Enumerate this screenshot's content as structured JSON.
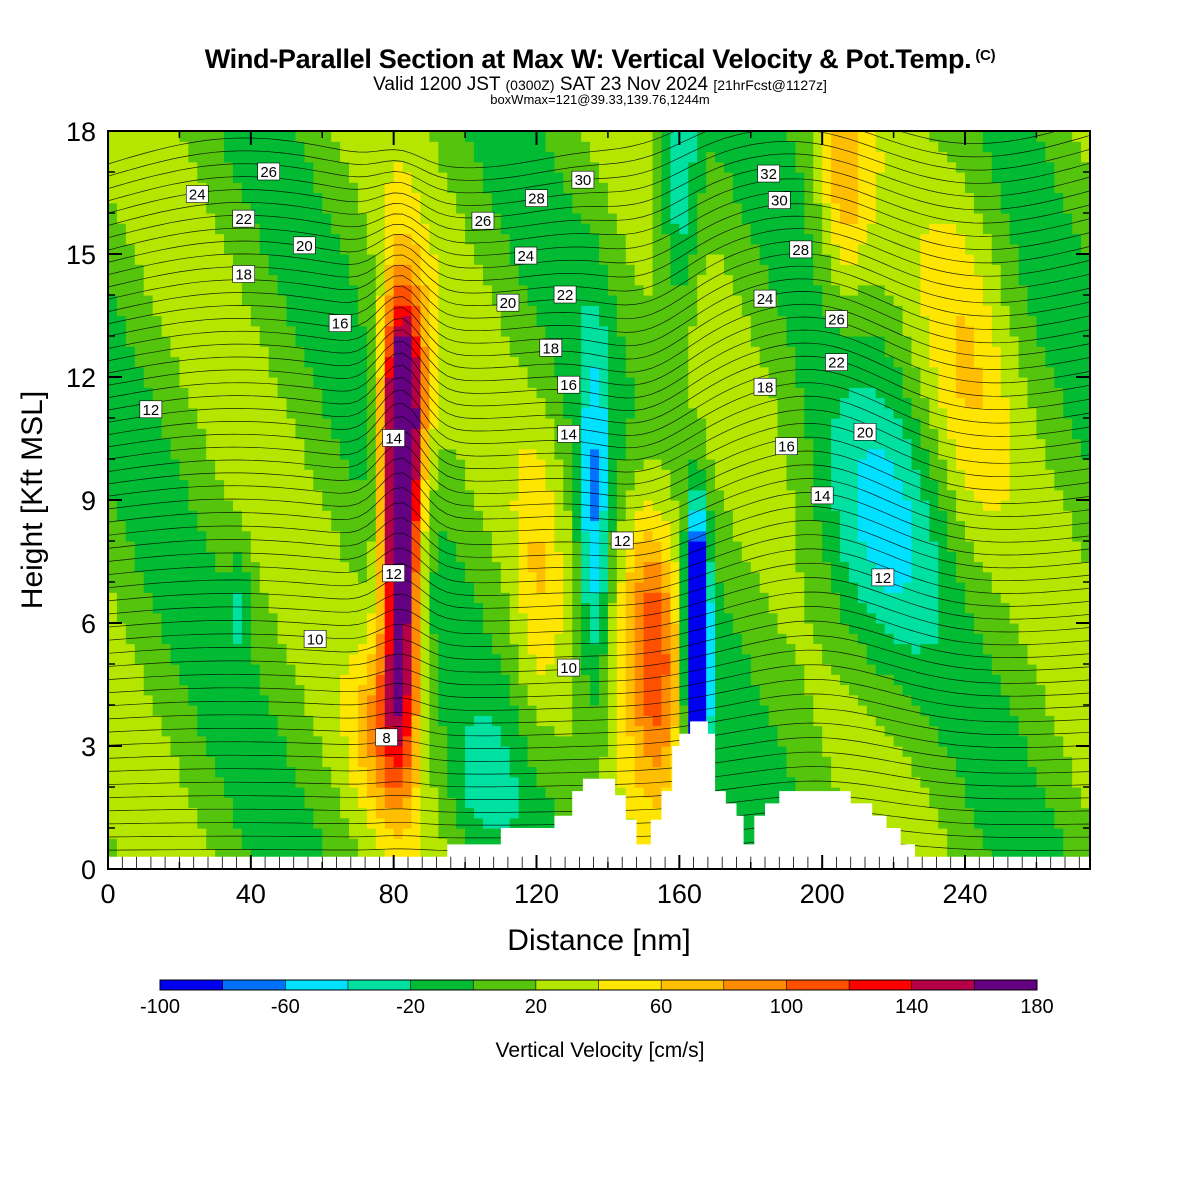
{
  "header": {
    "title": "Wind-Parallel Section at Max W: Vertical Velocity & Pot.Temp.",
    "title_mark": "(C)",
    "subtitle_a": "Valid 1200 JST",
    "subtitle_b": "(0300Z)",
    "subtitle_c": "SAT 23 Nov 2024",
    "subtitle_d": "[21hrFcst@1127z]",
    "box_info": "boxWmax=121@39.33,139.76,1244m"
  },
  "chart_data": {
    "type": "heatmap",
    "xlabel": "Distance [nm]",
    "ylabel": "Height [Kft MSL]",
    "xlim": [
      0,
      275
    ],
    "ylim": [
      0,
      18
    ],
    "xticks": [
      0,
      40,
      80,
      120,
      160,
      200,
      240
    ],
    "yticks": [
      0,
      3,
      6,
      9,
      12,
      15,
      18
    ],
    "colorbar": {
      "title": "Vertical Velocity [cm/s]",
      "levels": [
        -100,
        -80,
        -60,
        -40,
        -20,
        0,
        20,
        40,
        60,
        80,
        100,
        120,
        140,
        160,
        180
      ],
      "tick_labels": [
        "-100",
        "-60",
        "-20",
        "20",
        "60",
        "100",
        "140",
        "180"
      ],
      "colors": [
        "#0000f0",
        "#0070ff",
        "#00e0ff",
        "#00e0a0",
        "#00bb33",
        "#55c40c",
        "#b4e600",
        "#ffe600",
        "#ffbe00",
        "#ff8c00",
        "#ff5000",
        "#ff0000",
        "#b40046",
        "#640082"
      ]
    },
    "contour_labels": [
      {
        "text": "26",
        "x": 22.5,
        "y": 17.0
      },
      {
        "text": "24",
        "x": 6.2,
        "y": 16.45
      },
      {
        "text": "22",
        "x": 7.5,
        "y": 15.85
      },
      {
        "text": "20",
        "x": 12.5,
        "y": 15.2
      },
      {
        "text": "18",
        "x": 9.0,
        "y": 14.5
      },
      {
        "text": "16",
        "x": 13.5,
        "y": 13.3
      },
      {
        "text": "12",
        "x": 8.0,
        "y": 11.2
      },
      {
        "text": "14",
        "x": 34.5,
        "y": 10.5
      },
      {
        "text": "12",
        "x": 35.5,
        "y": 7.2
      },
      {
        "text": "10",
        "x": 7.5,
        "y": 5.6
      },
      {
        "text": "8",
        "x": 21.0,
        "y": 3.2
      },
      {
        "text": "30",
        "x": 68.5,
        "y": 16.8
      },
      {
        "text": "28",
        "x": 62.0,
        "y": 16.35
      },
      {
        "text": "26",
        "x": 52.0,
        "y": 15.8
      },
      {
        "text": "24",
        "x": 60.0,
        "y": 14.95
      },
      {
        "text": "22",
        "x": 64.0,
        "y": 14.0
      },
      {
        "text": "20",
        "x": 55.0,
        "y": 13.8
      },
      {
        "text": "18",
        "x": 62.5,
        "y": 12.7
      },
      {
        "text": "16",
        "x": 64.5,
        "y": 11.8
      },
      {
        "text": "14",
        "x": 64.5,
        "y": 10.6
      },
      {
        "text": "12",
        "x": 37.0,
        "y": 8.0
      },
      {
        "text": "10",
        "x": 35.0,
        "y": 4.9
      },
      {
        "text": "32",
        "x": 32.0,
        "y": 16.95
      },
      {
        "text": "30",
        "x": 37.0,
        "y": 16.3
      },
      {
        "text": "28",
        "x": 45.0,
        "y": 15.1
      },
      {
        "text": "24",
        "x": 32.5,
        "y": 13.9
      },
      {
        "text": "26",
        "x": 50.0,
        "y": 13.4
      },
      {
        "text": "22",
        "x": 50.5,
        "y": 12.35
      },
      {
        "text": "18",
        "x": 35.0,
        "y": 11.75
      },
      {
        "text": "20",
        "x": 51.0,
        "y": 10.65
      },
      {
        "text": "16",
        "x": 40.0,
        "y": 10.3
      },
      {
        "text": "14",
        "x": 50.0,
        "y": 9.1
      },
      {
        "text": "12",
        "x": 43.0,
        "y": 7.1
      }
    ],
    "updraft_max_cm_s": 180,
    "downdraft_min_cm_s": -100
  }
}
